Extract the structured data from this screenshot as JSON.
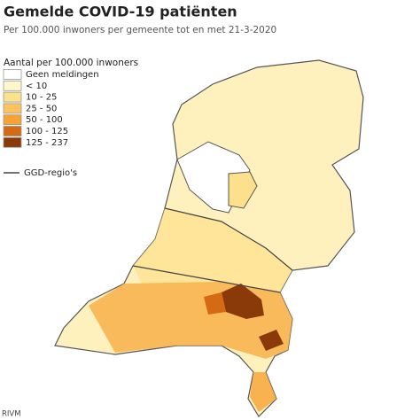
{
  "header": {
    "title": "Gemelde COVID-19 patiënten",
    "subtitle": "Per 100.000 inwoners per gemeente tot en met 21-3-2020"
  },
  "legend": {
    "title": "Aantal per 100.000 inwoners",
    "items": [
      {
        "label": "Geen meldingen",
        "color": "#ffffff"
      },
      {
        "label": "< 10",
        "color": "#fff7cc"
      },
      {
        "label": "10 - 25",
        "color": "#fde08c"
      },
      {
        "label": "25 - 50",
        "color": "#fdc45e"
      },
      {
        "label": "50 - 100",
        "color": "#f7a234"
      },
      {
        "label": "100 - 125",
        "color": "#d66a12"
      },
      {
        "label": "125 - 237",
        "color": "#8a3a08"
      }
    ],
    "line_label": "GGD-regio's"
  },
  "source": "RIVM"
}
